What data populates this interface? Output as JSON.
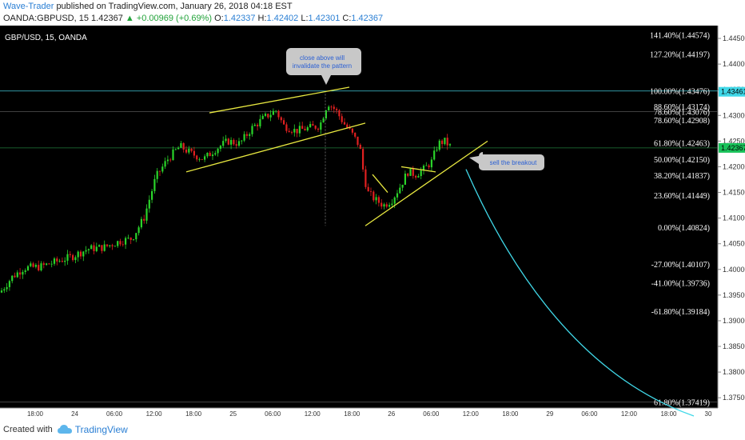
{
  "header": {
    "author": "Wave-Trader",
    "published": "published on TradingView.com, January 26, 2018 04:18 EST",
    "symbol": "OANDA:GBPUSD, 15",
    "last": "1.42367",
    "change": "▲ +0.00969 (+0.69%)",
    "o_label": "O:",
    "o": "1.42337",
    "h_label": "H:",
    "h": "1.42402",
    "l_label": "L:",
    "l": "1.42301",
    "c_label": "C:",
    "c": "1.42367"
  },
  "footer": {
    "created_with": "Created with",
    "brand": "TradingView"
  },
  "colors": {
    "background": "#000000",
    "up_candle": "#2ad42a",
    "down_candle": "#e02020",
    "trendline": "#e8e840",
    "projection": "#40d8e8",
    "price_tag": "#19c25a",
    "level_tag": "#40d8e8"
  },
  "chart_data": {
    "type": "candlestick",
    "title": "GBP/USD, 15, OANDA",
    "ylim": [
      1.373,
      1.4475
    ],
    "yticks": [
      "1.44500",
      "1.44000",
      "1.43500",
      "1.43000",
      "1.42500",
      "1.42000",
      "1.41500",
      "1.41000",
      "1.40500",
      "1.40000",
      "1.39500",
      "1.39000",
      "1.38500",
      "1.38000",
      "1.37500"
    ],
    "xticks": [
      "18:00",
      "24",
      "06:00",
      "12:00",
      "18:00",
      "25",
      "06:00",
      "12:00",
      "18:00",
      "26",
      "06:00",
      "12:00",
      "18:00",
      "29",
      "06:00",
      "12:00",
      "18:00",
      "30"
    ],
    "current_price": "1.42367",
    "level_price": "1.43461",
    "fib_levels": [
      {
        "label": "141.40%(1.44574)",
        "price": 1.44574
      },
      {
        "label": "127.20%(1.44197)",
        "price": 1.44197
      },
      {
        "label": "100.00%(1.43476)",
        "price": 1.43476
      },
      {
        "label": "88.60%(1.43174)",
        "price": 1.43174
      },
      {
        "label": "78.60%(1.43076)",
        "price": 1.43076
      },
      {
        "label": "78.60%(1.42908)",
        "price": 1.42908
      },
      {
        "label": "61.80%(1.42463)",
        "price": 1.42463
      },
      {
        "label": "50.00%(1.42150)",
        "price": 1.4215
      },
      {
        "label": "38.20%(1.41837)",
        "price": 1.41837
      },
      {
        "label": "23.60%(1.41449)",
        "price": 1.41449
      },
      {
        "label": "0.00%(1.40824)",
        "price": 1.40824
      },
      {
        "label": "-27.00%(1.40107)",
        "price": 1.40107
      },
      {
        "label": "-41.00%(1.39736)",
        "price": 1.39736
      },
      {
        "label": "-61.80%(1.39184)",
        "price": 1.39184
      },
      {
        "label": "61.80%(1.37419)",
        "price": 1.37419
      }
    ],
    "price_path": [
      [
        0,
        1.3955
      ],
      [
        15,
        1.3985
      ],
      [
        30,
        1.4003
      ],
      [
        50,
        1.4005
      ],
      [
        70,
        1.4015
      ],
      [
        90,
        1.4025
      ],
      [
        110,
        1.404
      ],
      [
        130,
        1.4043
      ],
      [
        150,
        1.4055
      ],
      [
        165,
        1.406
      ],
      [
        180,
        1.41
      ],
      [
        195,
        1.418
      ],
      [
        210,
        1.4215
      ],
      [
        225,
        1.424
      ],
      [
        240,
        1.4225
      ],
      [
        255,
        1.4215
      ],
      [
        270,
        1.4235
      ],
      [
        285,
        1.425
      ],
      [
        300,
        1.4245
      ],
      [
        315,
        1.4275
      ],
      [
        330,
        1.4295
      ],
      [
        345,
        1.431
      ],
      [
        355,
        1.428
      ],
      [
        370,
        1.427
      ],
      [
        385,
        1.4275
      ],
      [
        400,
        1.428
      ],
      [
        410,
        1.4325
      ],
      [
        420,
        1.431
      ],
      [
        430,
        1.4285
      ],
      [
        440,
        1.4265
      ],
      [
        450,
        1.424
      ],
      [
        455,
        1.4185
      ],
      [
        460,
        1.415
      ],
      [
        470,
        1.4135
      ],
      [
        480,
        1.4125
      ],
      [
        490,
        1.4135
      ],
      [
        500,
        1.416
      ],
      [
        510,
        1.419
      ],
      [
        520,
        1.4185
      ],
      [
        530,
        1.4195
      ],
      [
        540,
        1.421
      ],
      [
        548,
        1.4245
      ],
      [
        556,
        1.425
      ],
      [
        565,
        1.4237
      ]
    ],
    "annotations": [
      {
        "text": "close above will invalidate the pattern"
      },
      {
        "text": "sell the breakout"
      }
    ]
  }
}
